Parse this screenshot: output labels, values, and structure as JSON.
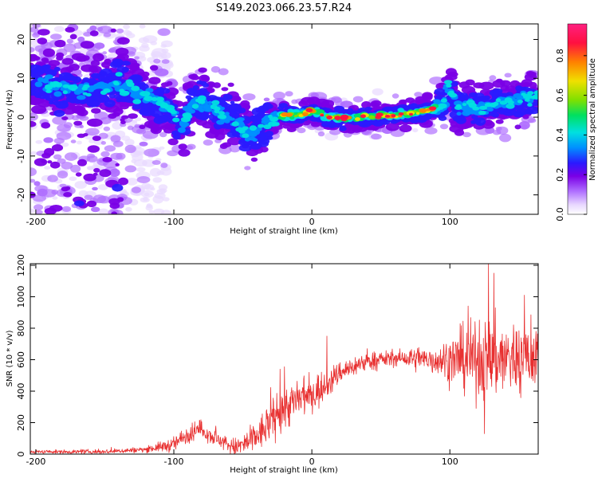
{
  "title": "S149.2023.066.23.57.R24",
  "colors": {
    "snr_line": "#e83030",
    "colormap": [
      "#ffffff",
      "#e8d8ff",
      "#b070ff",
      "#7a00e6",
      "#2a1aff",
      "#0090ff",
      "#00e0e0",
      "#00e060",
      "#7fe000",
      "#f0e000",
      "#ff8000",
      "#ff1040",
      "#ff2080"
    ]
  },
  "chart_data": [
    {
      "type": "heatmap",
      "xlabel": "Height of straight line (km)",
      "ylabel": "Frequency (Hz)",
      "xlim": [
        -204,
        164
      ],
      "ylim": [
        -25,
        24
      ],
      "xticks": [
        -200,
        -100,
        0,
        100
      ],
      "yticks": [
        -20,
        -10,
        0,
        10,
        20
      ],
      "ridge": [
        {
          "x": -200,
          "y": 9
        },
        {
          "x": -180,
          "y": 7.5
        },
        {
          "x": -160,
          "y": 7
        },
        {
          "x": -140,
          "y": 9
        },
        {
          "x": -125,
          "y": 6
        },
        {
          "x": -110,
          "y": 4
        },
        {
          "x": -100,
          "y": 1
        },
        {
          "x": -95,
          "y": -3
        },
        {
          "x": -85,
          "y": 4
        },
        {
          "x": -75,
          "y": 3
        },
        {
          "x": -65,
          "y": 1
        },
        {
          "x": -55,
          "y": -1
        },
        {
          "x": -45,
          "y": -5
        },
        {
          "x": -35,
          "y": -2
        },
        {
          "x": -25,
          "y": 0.5
        },
        {
          "x": -10,
          "y": 0.5
        },
        {
          "x": 0,
          "y": 2
        },
        {
          "x": 10,
          "y": 0
        },
        {
          "x": 30,
          "y": 0
        },
        {
          "x": 60,
          "y": 0.5
        },
        {
          "x": 80,
          "y": 1.5
        },
        {
          "x": 95,
          "y": 3
        },
        {
          "x": 98,
          "y": 8
        },
        {
          "x": 105,
          "y": 3
        },
        {
          "x": 120,
          "y": 2
        },
        {
          "x": 140,
          "y": 4
        },
        {
          "x": 164,
          "y": 5
        }
      ],
      "colorbar": {
        "label": "Normalized spectral amplitude",
        "range": [
          0,
          0.96
        ],
        "ticks": [
          "0.0",
          "0.2",
          "0.4",
          "0.6",
          "0.8"
        ]
      }
    },
    {
      "type": "line",
      "xlabel": "Height of straight line (km)",
      "ylabel": "SNR (10 * v/v)",
      "xlim": [
        -204,
        164
      ],
      "ylim": [
        0,
        1210
      ],
      "xticks": [
        -200,
        -100,
        0,
        100
      ],
      "yticks": [
        0,
        200,
        400,
        600,
        800,
        1000,
        1200
      ],
      "series": [
        {
          "envelope": [
            {
              "x": -204,
              "y": 15
            },
            {
              "x": -150,
              "y": 15
            },
            {
              "x": -120,
              "y": 30
            },
            {
              "x": -100,
              "y": 60
            },
            {
              "x": -90,
              "y": 130
            },
            {
              "x": -80,
              "y": 160
            },
            {
              "x": -70,
              "y": 100
            },
            {
              "x": -55,
              "y": 40
            },
            {
              "x": -45,
              "y": 80
            },
            {
              "x": -35,
              "y": 150
            },
            {
              "x": -25,
              "y": 260
            },
            {
              "x": -15,
              "y": 320
            },
            {
              "x": 0,
              "y": 380
            },
            {
              "x": 10,
              "y": 430
            },
            {
              "x": 20,
              "y": 520
            },
            {
              "x": 40,
              "y": 590
            },
            {
              "x": 60,
              "y": 610
            },
            {
              "x": 80,
              "y": 600
            },
            {
              "x": 100,
              "y": 600
            },
            {
              "x": 120,
              "y": 600
            },
            {
              "x": 140,
              "y": 610
            },
            {
              "x": 164,
              "y": 620
            }
          ],
          "spread": [
            {
              "x": -204,
              "y": 8
            },
            {
              "x": -120,
              "y": 15
            },
            {
              "x": -90,
              "y": 50
            },
            {
              "x": -60,
              "y": 40
            },
            {
              "x": -30,
              "y": 110
            },
            {
              "x": -5,
              "y": 120
            },
            {
              "x": 20,
              "y": 60
            },
            {
              "x": 60,
              "y": 40
            },
            {
              "x": 90,
              "y": 80
            },
            {
              "x": 110,
              "y": 170
            },
            {
              "x": 130,
              "y": 220
            },
            {
              "x": 164,
              "y": 180
            }
          ],
          "spikes": [
            {
              "x": -23,
              "y": 540
            },
            {
              "x": -20,
              "y": 555
            },
            {
              "x": 11,
              "y": 750
            },
            {
              "x": 128,
              "y": 1210
            },
            {
              "x": 132,
              "y": 1150
            },
            {
              "x": 154,
              "y": 1010
            },
            {
              "x": 125,
              "y": 130
            }
          ]
        }
      ]
    }
  ]
}
